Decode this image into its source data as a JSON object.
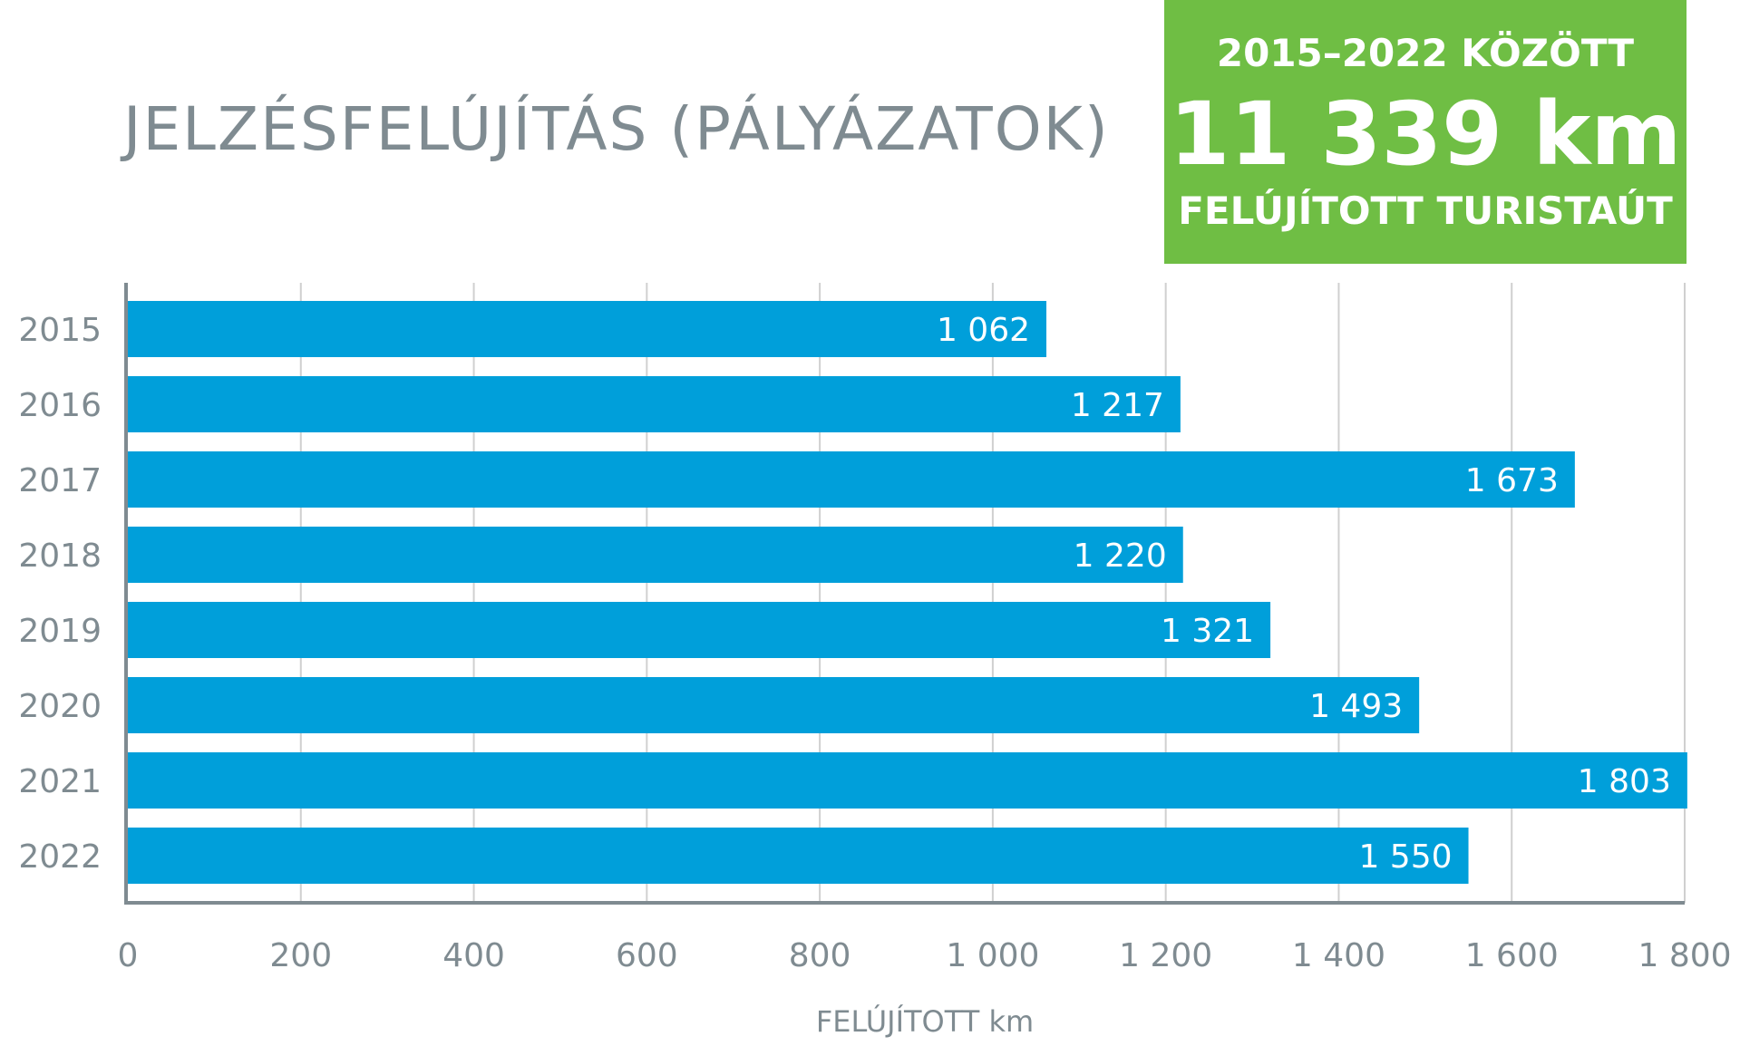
{
  "title": "JELZÉSFELÚJÍTÁS (PÁLYÁZATOK)",
  "summary": {
    "period": "2015–2022 KÖZÖTT",
    "value": "11 339 km",
    "caption": "FELÚJÍTOTT TURISTAÚT"
  },
  "colors": {
    "bar": "#009fda",
    "accent": "#6fbe44",
    "text": "#7f8b91",
    "grid": "#d0d0d0",
    "axis": "#7f8b91"
  },
  "chart_data": {
    "type": "bar",
    "orientation": "horizontal",
    "categories": [
      "2015",
      "2016",
      "2017",
      "2018",
      "2019",
      "2020",
      "2021",
      "2022"
    ],
    "values": [
      1062,
      1217,
      1673,
      1220,
      1321,
      1493,
      1803,
      1550
    ],
    "value_labels": [
      "1 062",
      "1 217",
      "1 673",
      "1 220",
      "1 321",
      "1 493",
      "1 803",
      "1 550"
    ],
    "xlim": [
      0,
      1800
    ],
    "xticks": [
      0,
      200,
      400,
      600,
      800,
      1000,
      1200,
      1400,
      1600,
      1800
    ],
    "xtick_labels": [
      "0",
      "200",
      "400",
      "600",
      "800",
      "1 000",
      "1 200",
      "1 400",
      "1 600",
      "1 800"
    ],
    "xlabel": "FELÚJÍTOTT km",
    "ylabel": "",
    "grid": "vertical"
  }
}
